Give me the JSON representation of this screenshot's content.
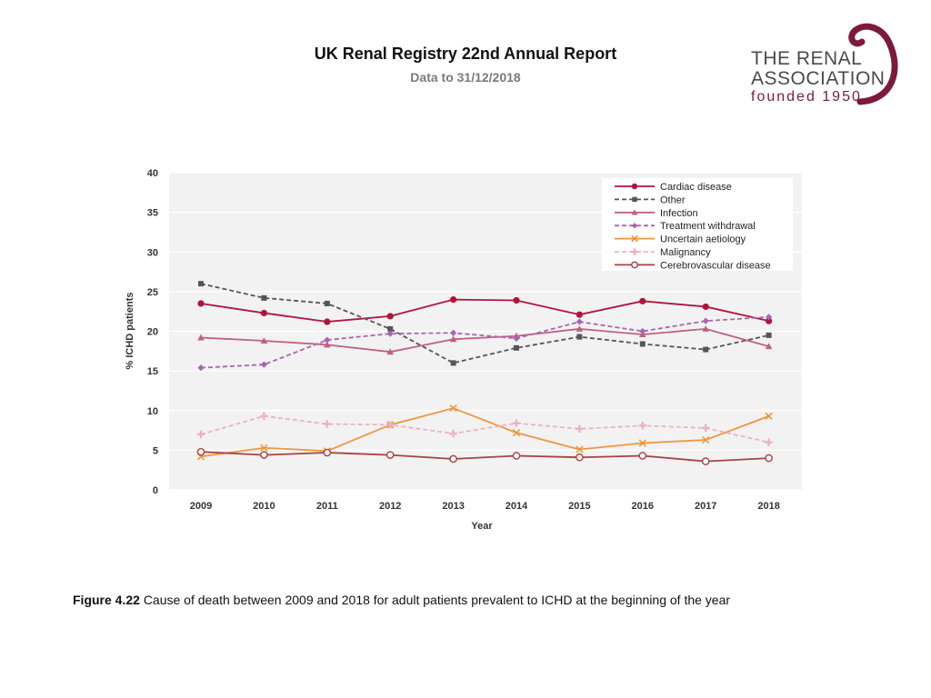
{
  "header": {
    "title": "UK Renal Registry 22nd Annual Report",
    "subtitle": "Data to 31/12/2018"
  },
  "logo": {
    "line1": "THE RENAL",
    "line2": "ASSOCIATION",
    "line3": "founded 1950",
    "color": "#7d1a3a"
  },
  "caption": {
    "label": "Figure 4.22",
    "text": "Cause of death between 2009 and 2018 for adult patients prevalent to ICHD at the beginning of the year"
  },
  "chart_data": {
    "type": "line",
    "title": "",
    "xlabel": "Year",
    "ylabel": "% ICHD patients",
    "ylim": [
      0,
      40
    ],
    "yticks": [
      0,
      5,
      10,
      15,
      20,
      25,
      30,
      35,
      40
    ],
    "categories": [
      "2009",
      "2010",
      "2011",
      "2012",
      "2013",
      "2014",
      "2015",
      "2016",
      "2017",
      "2018"
    ],
    "legend_position": "top-right",
    "series": [
      {
        "name": "Cardiac disease",
        "color": "#b0143c",
        "dash": "solid",
        "marker": "circle-filled",
        "values": [
          23.5,
          22.3,
          21.2,
          21.9,
          24.0,
          23.9,
          22.1,
          23.8,
          23.1,
          21.3
        ]
      },
      {
        "name": "Other",
        "color": "#555555",
        "dash": "dashed",
        "marker": "square",
        "values": [
          26.0,
          24.2,
          23.5,
          20.3,
          16.0,
          17.9,
          19.3,
          18.4,
          17.7,
          19.5
        ]
      },
      {
        "name": "Infection",
        "color": "#c06080",
        "dash": "solid",
        "marker": "triangle",
        "values": [
          19.2,
          18.8,
          18.3,
          17.4,
          19.0,
          19.4,
          20.3,
          19.6,
          20.3,
          18.1
        ]
      },
      {
        "name": "Treatment withdrawal",
        "color": "#a766b0",
        "dash": "dashed",
        "marker": "diamond",
        "values": [
          15.4,
          15.8,
          18.9,
          19.7,
          19.8,
          19.1,
          21.2,
          20.0,
          21.3,
          21.8
        ]
      },
      {
        "name": "Uncertain aetiology",
        "color": "#f0953b",
        "dash": "solid",
        "marker": "x",
        "values": [
          4.2,
          5.3,
          4.9,
          8.2,
          10.3,
          7.2,
          5.1,
          5.9,
          6.3,
          9.3
        ]
      },
      {
        "name": "Malignancy",
        "color": "#eeb2be",
        "dash": "dashed",
        "marker": "plus",
        "values": [
          7.0,
          9.3,
          8.3,
          8.2,
          7.1,
          8.4,
          7.7,
          8.1,
          7.8,
          6.0
        ]
      },
      {
        "name": "Cerebrovascular disease",
        "color": "#a8423f",
        "dash": "solid",
        "marker": "circle-open",
        "values": [
          4.8,
          4.4,
          4.7,
          4.4,
          3.9,
          4.3,
          4.1,
          4.3,
          3.6,
          4.0
        ]
      }
    ]
  }
}
